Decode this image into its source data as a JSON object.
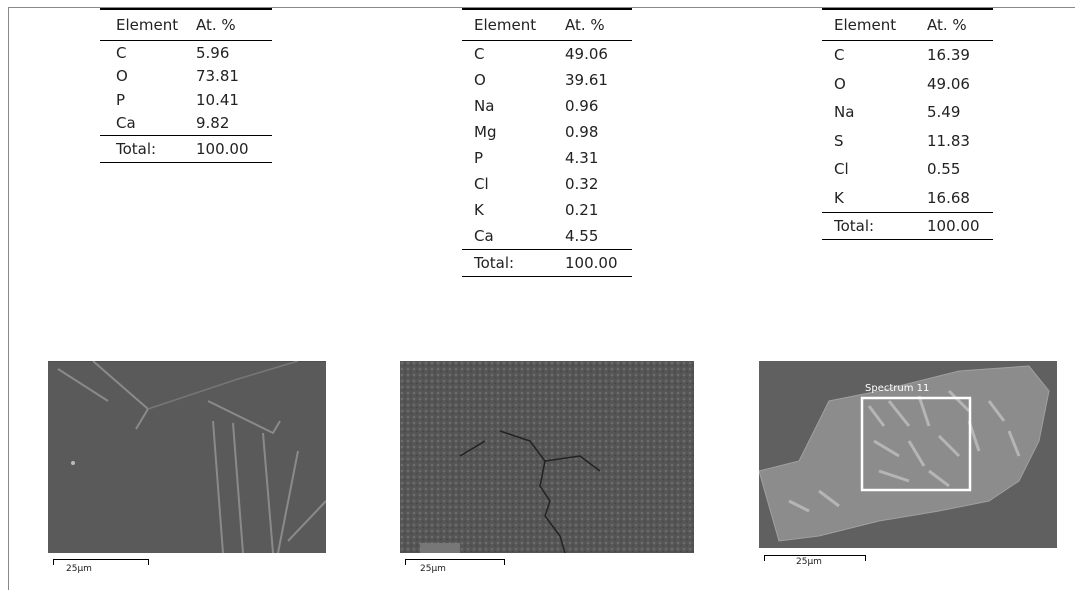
{
  "tables": [
    {
      "header": [
        "Element",
        "At. %"
      ],
      "rows": [
        [
          "C",
          "5.96"
        ],
        [
          "O",
          "73.81"
        ],
        [
          "P",
          "10.41"
        ],
        [
          "Ca",
          "9.82"
        ]
      ],
      "total": [
        "Total:",
        "100.00"
      ]
    },
    {
      "header": [
        "Element",
        "At. %"
      ],
      "rows": [
        [
          "C",
          "49.06"
        ],
        [
          "O",
          "39.61"
        ],
        [
          "Na",
          "0.96"
        ],
        [
          "Mg",
          "0.98"
        ],
        [
          "P",
          "4.31"
        ],
        [
          "Cl",
          "0.32"
        ],
        [
          "K",
          "0.21"
        ],
        [
          "Ca",
          "4.55"
        ]
      ],
      "total": [
        "Total:",
        "100.00"
      ]
    },
    {
      "header": [
        "Element",
        "At. %"
      ],
      "rows": [
        [
          "C",
          "16.39"
        ],
        [
          "O",
          "49.06"
        ],
        [
          "Na",
          "5.49"
        ],
        [
          "S",
          "11.83"
        ],
        [
          "Cl",
          "0.55"
        ],
        [
          "K",
          "16.68"
        ]
      ],
      "total": [
        "Total:",
        "100.00"
      ]
    }
  ],
  "images": [
    {
      "scale_label": "25μm"
    },
    {
      "scale_label": "25μm"
    },
    {
      "scale_label": "25μm",
      "annotation": "Spectrum 11"
    }
  ]
}
